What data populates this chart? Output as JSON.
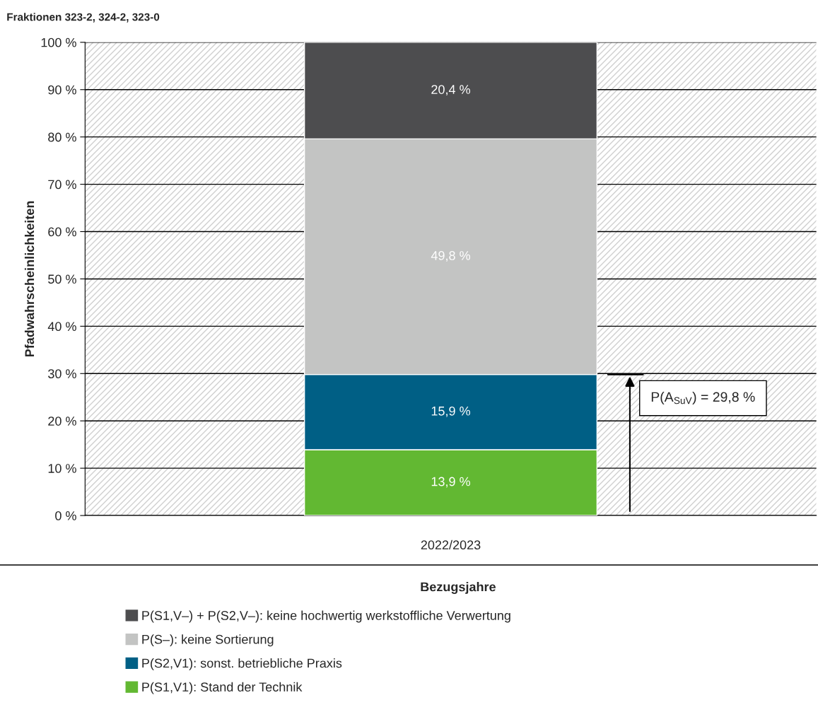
{
  "chart_data": {
    "type": "bar",
    "stacked": true,
    "title": "Fraktionen 323-2, 324-2, 323-0",
    "xlabel": "Bezugsjahre",
    "ylabel": "Pfadwahrscheinlichkeiten",
    "categories": [
      "2022/2023"
    ],
    "series": [
      {
        "name": "P(S1,V1): Stand der Technik",
        "color": "#62b832",
        "values": [
          13.9
        ],
        "value_labels": [
          "13,9 %"
        ]
      },
      {
        "name": "P(S2,V1): sonst. betriebliche Praxis",
        "color": "#005f85",
        "values": [
          15.9
        ],
        "value_labels": [
          "15,9 %"
        ]
      },
      {
        "name": "P(S–): keine Sortierung",
        "color": "#c3c4c3",
        "values": [
          49.8
        ],
        "value_labels": [
          "49,8 %"
        ]
      },
      {
        "name": "P(S1,V–) + P(S2,V–): keine hochwertig werkstoffliche Verwertung",
        "color": "#4d4d4f",
        "values": [
          20.4
        ],
        "value_labels": [
          "20,4 %"
        ]
      }
    ],
    "ylim": [
      0,
      100
    ],
    "yticks": [
      {
        "value": 0,
        "label": "0 %"
      },
      {
        "value": 10,
        "label": "10 %"
      },
      {
        "value": 20,
        "label": "20 %"
      },
      {
        "value": 30,
        "label": "30 %"
      },
      {
        "value": 40,
        "label": "40 %"
      },
      {
        "value": 50,
        "label": "50 %"
      },
      {
        "value": 60,
        "label": "60 %"
      },
      {
        "value": 70,
        "label": "70 %"
      },
      {
        "value": 80,
        "label": "80 %"
      },
      {
        "value": 90,
        "label": "90 %"
      },
      {
        "value": 100,
        "label": "100 %"
      }
    ],
    "grid": "y",
    "legend": "bottom",
    "ref_lines": [
      {
        "axis": "y",
        "value": 29.8,
        "label": "P(A$_{SuV}$) = 29,8 %"
      }
    ]
  }
}
